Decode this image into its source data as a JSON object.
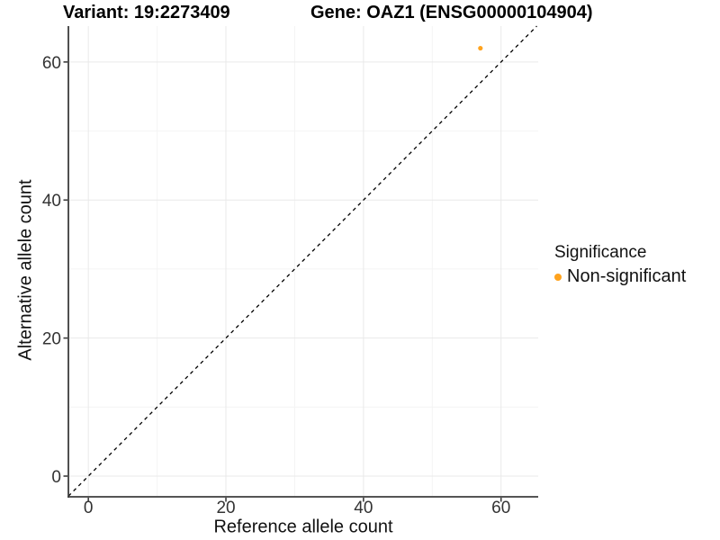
{
  "titles": {
    "variant": "Variant: 19:2273409",
    "gene": "Gene: OAZ1 (ENSG00000104904)"
  },
  "legend": {
    "title": "Significance",
    "items": [
      {
        "label": "Non-significant",
        "color": "#FFA31E"
      }
    ]
  },
  "colors": {
    "point": "#FFA31E",
    "axis_line": "#3d3d3d",
    "tick_label": "#333333",
    "grid_major": "#e9e9e9",
    "grid_minor": "#f4f4f4",
    "identity_line": "#000000"
  },
  "chart_data": {
    "type": "scatter",
    "title_left": "Variant: 19:2273409",
    "title_right": "Gene: OAZ1 (ENSG00000104904)",
    "xlabel": "Reference allele count",
    "ylabel": "Alternative allele count",
    "xlim": [
      -2.9,
      65.4
    ],
    "ylim": [
      -3.0,
      65.2
    ],
    "xticks": [
      0,
      20,
      40,
      60
    ],
    "yticks": [
      0,
      20,
      40,
      60
    ],
    "xticks_minor": [
      10,
      30,
      50
    ],
    "yticks_minor": [
      10,
      30,
      50
    ],
    "grid": true,
    "identity_line": {
      "slope": 1,
      "intercept": 0,
      "style": "dashed"
    },
    "legend_position": "right",
    "legend_title": "Significance",
    "series": [
      {
        "name": "Non-significant",
        "color": "#FFA31E",
        "points": [
          {
            "x": 57,
            "y": 62
          }
        ]
      }
    ]
  }
}
